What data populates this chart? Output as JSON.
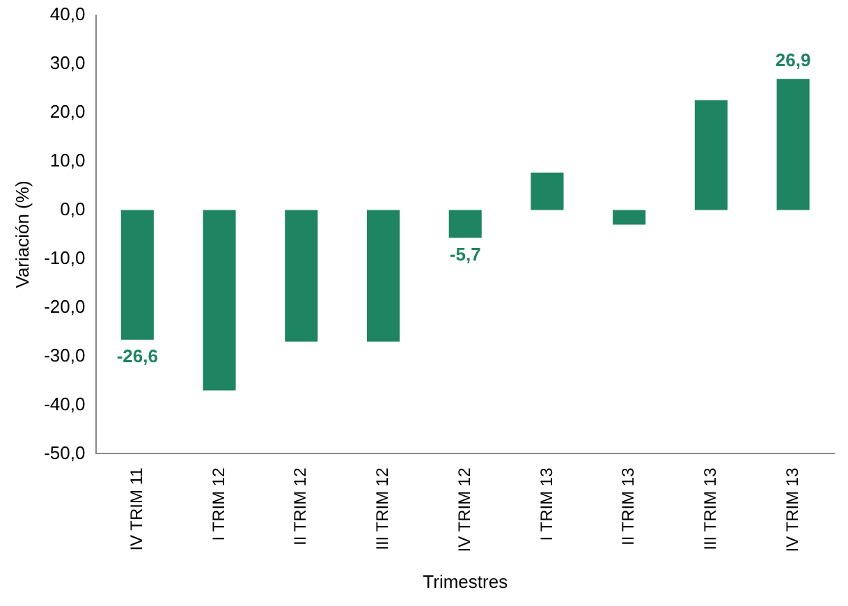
{
  "chart_data": {
    "type": "bar",
    "xlabel": "Trimestres",
    "ylabel": "Variación (%)",
    "categories": [
      "IV TRIM 11",
      "I TRIM 12",
      "II TRIM 12",
      "III TRIM 12",
      "IV TRIM 12",
      "I TRIM 13",
      "II TRIM 13",
      "III TRIM 13",
      "IV TRIM 13"
    ],
    "values": [
      -26.6,
      -37,
      -27,
      -27,
      -5.7,
      7.7,
      -3,
      22.5,
      26.9
    ],
    "value_labels": [
      "-26,6",
      null,
      null,
      null,
      "-5,7",
      null,
      null,
      null,
      "26,9"
    ],
    "color": "#1f8462",
    "ylim": [
      -50,
      40
    ],
    "yticks": [
      {
        "value": -50,
        "label": "-50,0"
      },
      {
        "value": -40,
        "label": "-40,0"
      },
      {
        "value": -30,
        "label": "-30,0"
      },
      {
        "value": -20,
        "label": "-20,0"
      },
      {
        "value": -10,
        "label": "-10,0"
      },
      {
        "value": 0,
        "label": "0,0"
      },
      {
        "value": 10,
        "label": "10,0"
      },
      {
        "value": 20,
        "label": "20,0"
      },
      {
        "value": 30,
        "label": "30,0"
      },
      {
        "value": 40,
        "label": "40,0"
      }
    ],
    "grid": false,
    "legend": false
  }
}
